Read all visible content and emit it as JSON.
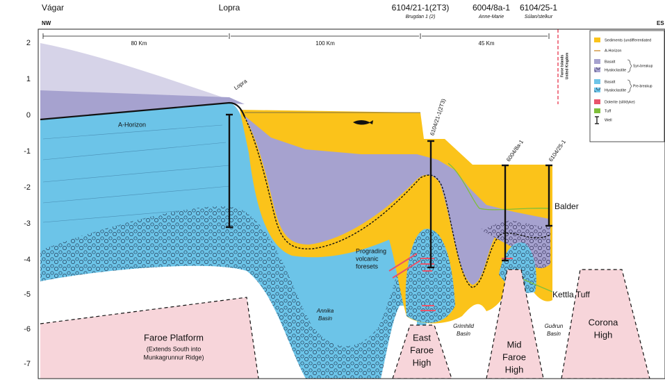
{
  "header": {
    "left_location": "Vágar",
    "lopra": "Lopra",
    "wells": [
      {
        "name": "6104/21-1(2T3)",
        "alias": "Brugdan 1 (2)"
      },
      {
        "name": "6004/8a-1",
        "alias": "Anne-Marie"
      },
      {
        "name": "6104/25-1",
        "alias": "Súlan/stelkur"
      }
    ],
    "left_direction": "NW",
    "right_direction": "ES"
  },
  "distances": [
    "80 Km",
    "100 Km",
    "45 Km"
  ],
  "depth_scale": [
    "2",
    "1",
    "0",
    "-1",
    "-2",
    "-3",
    "-4",
    "-5",
    "-6",
    "-7"
  ],
  "border": [
    "Faroe Islands",
    "United Kingdom"
  ],
  "legend": {
    "sediments": "Sediments  (undifferentiated",
    "a_horizon": "A-Horizon",
    "syn_basalt": "Basalt",
    "syn_hyaloclastite": "Hyaloclastite",
    "syn_group": "Syn-breakup",
    "pre_basalt": "Basalt",
    "pre_hyaloclastite": "Hyaloclastite",
    "pre_group": "Pre-breakup",
    "dolerite": "Dolerite (sill/dyke)",
    "tuff": "Tuff",
    "well": "Well"
  },
  "section_labels": {
    "a_horizon": "A-Horizon",
    "lopra": "Lopra",
    "well_1": "6104/21-1(2T3)",
    "well_2": "6004/8a-1",
    "well_3": "6104/25-1",
    "balder": "Balder",
    "foresets": [
      "Prograding",
      "volcanic",
      "foresets"
    ],
    "kettla": "Kettla Tuff",
    "annika": [
      "Annika",
      "Basin"
    ],
    "faroe_platform": "Faroe Platform",
    "faroe_platform_note": [
      "(Extends South into",
      "Munkagrunnur Ridge)"
    ],
    "east_faroe_high": [
      "East",
      "Faroe",
      "High"
    ],
    "grimhild": [
      "Grimhild",
      "Basin"
    ],
    "mid_faroe_high": [
      "Mid",
      "Faroe",
      "High"
    ],
    "gudrun": [
      "Guðrun",
      "Basin"
    ],
    "corona_high": [
      "Corona",
      "High"
    ]
  }
}
